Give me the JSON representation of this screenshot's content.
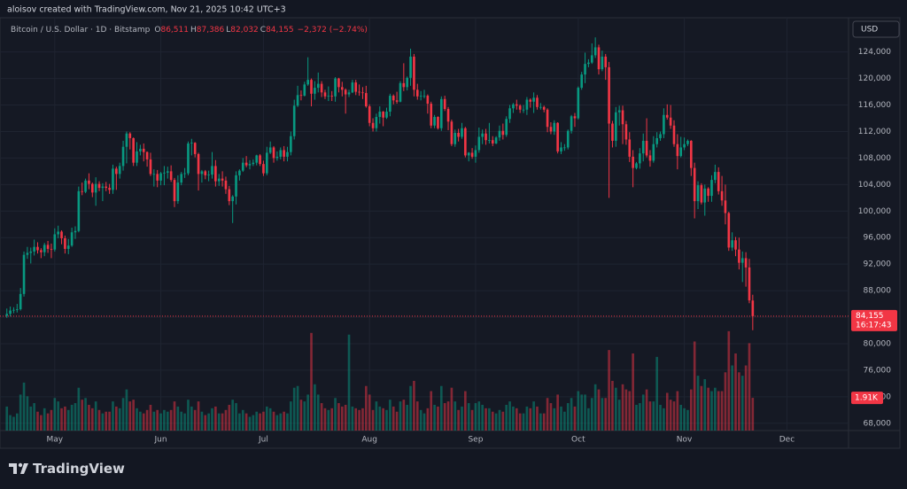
{
  "chart_data": {
    "type": "candlestick",
    "watermark": "aloisov created with TradingView.com, Nov 21, 2025 10:42 UTC+3",
    "subtitle": "Bitcoin / U.S. Dollar · 1D · Bitstamp",
    "ohlc": [
      {
        "label": "O",
        "value": "86,511"
      },
      {
        "label": "H",
        "value": "87,386"
      },
      {
        "label": "L",
        "value": "82,032"
      },
      {
        "label": "C",
        "value": "84,155"
      }
    ],
    "change": "−2,372 (−2.74%)",
    "currency": "USD",
    "last_price_label": "84,155",
    "countdown": "16:17:43",
    "volume_last_label": "1.91K",
    "brand": "TradingView",
    "up_color": "#089981",
    "down_color": "#f23645",
    "grid": true,
    "xlim": [
      -2,
      246
    ],
    "xticks": [
      {
        "value": 14,
        "label": "May"
      },
      {
        "value": 45,
        "label": "Jun"
      },
      {
        "value": 75,
        "label": "Jul"
      },
      {
        "value": 106,
        "label": "Aug"
      },
      {
        "value": 137,
        "label": "Sep"
      },
      {
        "value": 167,
        "label": "Oct"
      },
      {
        "value": 198,
        "label": "Nov"
      },
      {
        "value": 228,
        "label": "Dec"
      }
    ],
    "ylim": [
      66900,
      128900
    ],
    "yticks": [
      {
        "value": 68000,
        "label": "68,000"
      },
      {
        "value": 72000,
        "label": "72,000"
      },
      {
        "value": 76000,
        "label": "76,000"
      },
      {
        "value": 80000,
        "label": "80,000"
      },
      {
        "value": 84000,
        "label": "84,000"
      },
      {
        "value": 88000,
        "label": "88,000"
      },
      {
        "value": 92000,
        "label": "92,000"
      },
      {
        "value": 96000,
        "label": "96,000"
      },
      {
        "value": 100000,
        "label": "100,000"
      },
      {
        "value": 104000,
        "label": "104,000"
      },
      {
        "value": 108000,
        "label": "108,000"
      },
      {
        "value": 112000,
        "label": "112,000"
      },
      {
        "value": 116000,
        "label": "116,000"
      },
      {
        "value": 120000,
        "label": "120,000"
      },
      {
        "value": 124000,
        "label": "124,000"
      }
    ],
    "vlim": [
      0,
      24000
    ],
    "open": [
      84200,
      84500,
      85000,
      85100,
      85200,
      87500,
      93400,
      93700,
      93900,
      94600,
      94100,
      93800,
      94900,
      94300,
      94200,
      96500,
      96900,
      95900,
      94300,
      94800,
      96800,
      97000,
      103000,
      102900,
      104600,
      104100,
      102800,
      104100,
      103500,
      103700,
      103500,
      103200,
      106400,
      105600,
      106800,
      109700,
      111700,
      111000,
      107300,
      109000,
      109400,
      108900,
      107800,
      105600,
      105600,
      104600,
      105700,
      105800,
      106000,
      104700,
      101500,
      104300,
      105600,
      105700,
      110200,
      110300,
      108600,
      105600,
      106000,
      105400,
      105500,
      106800,
      104500,
      104900,
      104600,
      103300,
      101500,
      102200,
      105400,
      106100,
      107300,
      106900,
      107100,
      107300,
      108400,
      107100,
      105700,
      108800,
      109600,
      108000,
      108200,
      109200,
      108200,
      108900,
      111300,
      115900,
      117500,
      117400,
      119100,
      119800,
      117700,
      118600,
      119200,
      117900,
      117300,
      117400,
      117300,
      120000,
      118700,
      118300,
      117600,
      117900,
      119400,
      118000,
      117900,
      117800,
      115800,
      113300,
      112500,
      114200,
      115000,
      114100,
      115000,
      117400,
      116700,
      116500,
      119300,
      118700,
      120100,
      123300,
      118300,
      117300,
      117400,
      117400,
      116200,
      112900,
      114200,
      112500,
      116900,
      115400,
      113500,
      110100,
      111800,
      111200,
      112500,
      108400,
      108800,
      108200,
      109200,
      111200,
      111700,
      110700,
      110700,
      110200,
      111100,
      112100,
      111500,
      113900,
      115500,
      116100,
      115900,
      115300,
      115300,
      116800,
      116500,
      117100,
      115700,
      115700,
      115300,
      112700,
      112000,
      113300,
      109000,
      109600,
      109600,
      112100,
      114300,
      114000,
      118600,
      120600,
      122200,
      122400,
      123500,
      124700,
      121400,
      123300,
      121700,
      113200,
      110600,
      114900,
      115200,
      113100,
      110800,
      108200,
      106500,
      107200,
      108700,
      110600,
      108400,
      107600,
      110100,
      111000,
      111600,
      114500,
      114100,
      112900,
      110100,
      108300,
      109600,
      110100,
      110600,
      106500,
      101500,
      103900,
      101300,
      103400,
      102300,
      104700,
      105900,
      103000,
      101600,
      99700,
      94500,
      95600,
      94200,
      92200,
      92900,
      91500,
      86511
    ],
    "high": [
      85300,
      85600,
      85500,
      86000,
      88400,
      93900,
      94600,
      94500,
      95700,
      95300,
      94400,
      95200,
      95500,
      95100,
      97400,
      97800,
      97100,
      96300,
      95800,
      97500,
      97700,
      103700,
      104300,
      104900,
      105700,
      104300,
      105100,
      104500,
      104200,
      104400,
      104100,
      107000,
      106700,
      107300,
      110600,
      112000,
      111900,
      111100,
      110400,
      110000,
      110200,
      109000,
      108800,
      106300,
      106200,
      105900,
      106800,
      106700,
      106900,
      105000,
      105400,
      105900,
      106500,
      110500,
      110900,
      110400,
      108800,
      106200,
      106200,
      106100,
      108900,
      107700,
      105600,
      106000,
      105200,
      103800,
      102400,
      106000,
      106300,
      108000,
      108300,
      107700,
      107800,
      108500,
      108600,
      107600,
      109700,
      110500,
      109800,
      109000,
      109600,
      109800,
      109700,
      112000,
      116800,
      118900,
      118200,
      119500,
      123200,
      120000,
      119600,
      120900,
      119600,
      118300,
      118800,
      118100,
      120200,
      120100,
      119500,
      118500,
      118300,
      119800,
      119800,
      119100,
      118700,
      118900,
      116100,
      114000,
      114700,
      115800,
      115100,
      115600,
      117700,
      117600,
      118000,
      119600,
      122300,
      120300,
      124500,
      123700,
      119200,
      118100,
      118300,
      117600,
      116500,
      114500,
      114300,
      117300,
      117400,
      115700,
      113800,
      112300,
      112400,
      113300,
      112700,
      108900,
      109500,
      109900,
      112600,
      112300,
      112400,
      113300,
      111300,
      111300,
      112900,
      113200,
      114300,
      116000,
      116300,
      116800,
      116100,
      116000,
      117200,
      117000,
      117900,
      117500,
      116300,
      115900,
      115500,
      113400,
      113700,
      113400,
      110400,
      110100,
      112300,
      114500,
      114800,
      118800,
      121000,
      123900,
      122900,
      125300,
      126200,
      125100,
      124200,
      123700,
      122500,
      113600,
      115700,
      115900,
      115900,
      113600,
      111900,
      109200,
      107400,
      109500,
      111700,
      114000,
      109200,
      111300,
      111900,
      112000,
      115500,
      116100,
      116000,
      113700,
      111600,
      111200,
      111100,
      110800,
      110700,
      107300,
      104500,
      104200,
      104000,
      103600,
      105400,
      107000,
      106600,
      105300,
      104000,
      99900,
      96800,
      96100,
      96000,
      93900,
      93800,
      92800,
      87386
    ],
    "low": [
      83900,
      84100,
      84600,
      84700,
      85000,
      87100,
      92800,
      92100,
      93300,
      93600,
      92900,
      93200,
      93700,
      92900,
      93900,
      95900,
      95000,
      93600,
      93500,
      94600,
      95800,
      96800,
      102400,
      102700,
      103300,
      102100,
      100800,
      103000,
      101500,
      103000,
      102600,
      102600,
      103200,
      104900,
      106100,
      107200,
      109300,
      106800,
      106800,
      108400,
      107500,
      106700,
      105300,
      103700,
      103600,
      103900,
      103900,
      104900,
      104400,
      100600,
      101100,
      103900,
      105000,
      105400,
      108400,
      108100,
      103100,
      104300,
      104800,
      104500,
      104900,
      103700,
      103800,
      103700,
      102600,
      100900,
      98200,
      101000,
      104600,
      105900,
      106600,
      106300,
      106800,
      106900,
      106800,
      105300,
      105400,
      108600,
      107300,
      107600,
      107800,
      107500,
      107500,
      108400,
      110800,
      115700,
      116700,
      117300,
      118900,
      115800,
      116800,
      117900,
      117200,
      116900,
      116600,
      116600,
      116500,
      117900,
      117300,
      114700,
      117200,
      117800,
      117500,
      117400,
      116900,
      115600,
      112800,
      112000,
      112000,
      113200,
      112800,
      113900,
      114300,
      116100,
      116200,
      116400,
      118100,
      118200,
      118900,
      117300,
      116800,
      116700,
      117000,
      114700,
      112500,
      112500,
      112300,
      112100,
      115100,
      112200,
      109800,
      109700,
      110500,
      110900,
      108100,
      107500,
      107900,
      107300,
      108800,
      110100,
      110000,
      110200,
      109800,
      110100,
      110600,
      110800,
      111200,
      113300,
      114800,
      115300,
      114800,
      114800,
      114500,
      115600,
      114800,
      115300,
      115300,
      114900,
      111900,
      111600,
      111500,
      108700,
      108600,
      109100,
      109300,
      111700,
      112700,
      113800,
      118300,
      119300,
      121700,
      122200,
      123100,
      120600,
      121100,
      119800,
      102000,
      109600,
      109700,
      112900,
      110100,
      110000,
      107400,
      103600,
      106300,
      106400,
      107500,
      108100,
      106700,
      107300,
      109600,
      110600,
      111000,
      113800,
      112400,
      109700,
      106300,
      108100,
      109200,
      109800,
      105300,
      98900,
      100300,
      101000,
      99300,
      101400,
      101400,
      104200,
      102500,
      100800,
      98000,
      94000,
      94000,
      93200,
      91200,
      89300,
      88600,
      86100,
      82032
    ],
    "close": [
      84500,
      85000,
      85100,
      85200,
      87500,
      93400,
      93700,
      93900,
      94600,
      94100,
      93800,
      94900,
      94300,
      94200,
      96500,
      96900,
      95900,
      94300,
      94800,
      96800,
      97000,
      103000,
      102900,
      104600,
      104100,
      102800,
      104100,
      103500,
      103700,
      103500,
      103200,
      106400,
      105600,
      106800,
      109700,
      111700,
      111000,
      107300,
      109000,
      109400,
      108900,
      107800,
      105600,
      105600,
      104600,
      105700,
      105800,
      106000,
      104700,
      101500,
      104300,
      105600,
      105700,
      110200,
      110300,
      108600,
      105600,
      106000,
      105400,
      105500,
      106800,
      104500,
      104900,
      104600,
      103300,
      101500,
      102200,
      105400,
      106100,
      107300,
      106900,
      107100,
      107300,
      108400,
      107100,
      105700,
      108800,
      109600,
      108000,
      108200,
      109200,
      108200,
      108900,
      111300,
      115900,
      117500,
      117400,
      119100,
      119800,
      117700,
      118600,
      119200,
      117900,
      117300,
      117400,
      117300,
      120000,
      118700,
      118300,
      117600,
      117900,
      119400,
      118000,
      117900,
      117800,
      115800,
      113300,
      112500,
      114200,
      115000,
      114100,
      115000,
      117400,
      116700,
      116500,
      119300,
      118700,
      120100,
      123300,
      118300,
      117300,
      117400,
      117400,
      116200,
      112900,
      114200,
      112500,
      116900,
      115400,
      113500,
      110100,
      111800,
      111200,
      112500,
      108400,
      108800,
      108200,
      109200,
      111200,
      111700,
      110700,
      110700,
      110200,
      111100,
      112100,
      111500,
      113900,
      115500,
      116100,
      115900,
      115300,
      115300,
      116800,
      116500,
      117100,
      115700,
      115700,
      115300,
      112700,
      112000,
      113300,
      109000,
      109600,
      109600,
      112100,
      114300,
      114000,
      118600,
      120600,
      122200,
      122400,
      123500,
      124700,
      121400,
      123300,
      121700,
      113200,
      110600,
      114900,
      115200,
      113100,
      110800,
      108200,
      106500,
      107200,
      108700,
      110600,
      108400,
      107600,
      110100,
      111000,
      111600,
      114500,
      114100,
      112900,
      110100,
      108300,
      109600,
      110100,
      110600,
      106500,
      101500,
      103900,
      101300,
      103400,
      102300,
      104700,
      105900,
      103000,
      101600,
      99700,
      94500,
      95600,
      94200,
      92200,
      92900,
      91500,
      86527,
      84155
    ],
    "volume": [
      1400,
      900,
      800,
      1000,
      2100,
      2800,
      2000,
      1400,
      1600,
      1100,
      900,
      1300,
      1000,
      1200,
      1900,
      1700,
      1300,
      1400,
      1200,
      1500,
      1600,
      2500,
      1800,
      1900,
      1500,
      1300,
      1700,
      1200,
      1000,
      1100,
      1100,
      1700,
      1400,
      1300,
      1900,
      2400,
      1700,
      1800,
      1300,
      1100,
      1000,
      1200,
      1500,
      1100,
      1200,
      1000,
      1200,
      1100,
      1200,
      1700,
      1400,
      1100,
      1000,
      1800,
      1400,
      1200,
      1700,
      1100,
      900,
      1000,
      1300,
      1400,
      1000,
      1000,
      1200,
      1500,
      1800,
      1600,
      1000,
      1200,
      1000,
      800,
      900,
      1100,
      1000,
      1100,
      1400,
      1300,
      1100,
      900,
      1000,
      1100,
      1000,
      1700,
      2500,
      2600,
      1800,
      1700,
      2100,
      5700,
      2700,
      2100,
      1600,
      1300,
      1200,
      1300,
      1900,
      1600,
      1400,
      1500,
      5600,
      1400,
      1300,
      1200,
      1300,
      2600,
      2100,
      1200,
      1700,
      1400,
      1300,
      1200,
      1800,
      1400,
      1100,
      1700,
      1800,
      1500,
      2600,
      2900,
      1700,
      1200,
      1000,
      1300,
      2300,
      1500,
      1400,
      2600,
      1600,
      1700,
      2500,
      1700,
      1200,
      1400,
      2300,
      1600,
      1200,
      1600,
      1700,
      1500,
      1300,
      1300,
      1100,
      1000,
      1200,
      1100,
      1500,
      1700,
      1400,
      1300,
      1000,
      1000,
      1400,
      1300,
      1700,
      1400,
      1000,
      1000,
      1900,
      1600,
      1300,
      2100,
      1400,
      1100,
      1600,
      1900,
      1400,
      2300,
      2100,
      2100,
      1300,
      1900,
      2700,
      2400,
      1900,
      1900,
      4700,
      2900,
      2500,
      1800,
      2700,
      2400,
      2300,
      4500,
      1500,
      1600,
      2100,
      2400,
      1700,
      1700,
      4300,
      1500,
      1300,
      2200,
      1800,
      1700,
      2300,
      1500,
      1300,
      1200,
      2400,
      5200,
      3200,
      2600,
      3000,
      2500,
      2300,
      2500,
      2300,
      2300,
      3400,
      5800,
      3800,
      4500,
      3400,
      3200,
      3800,
      5100,
      1910
    ]
  }
}
